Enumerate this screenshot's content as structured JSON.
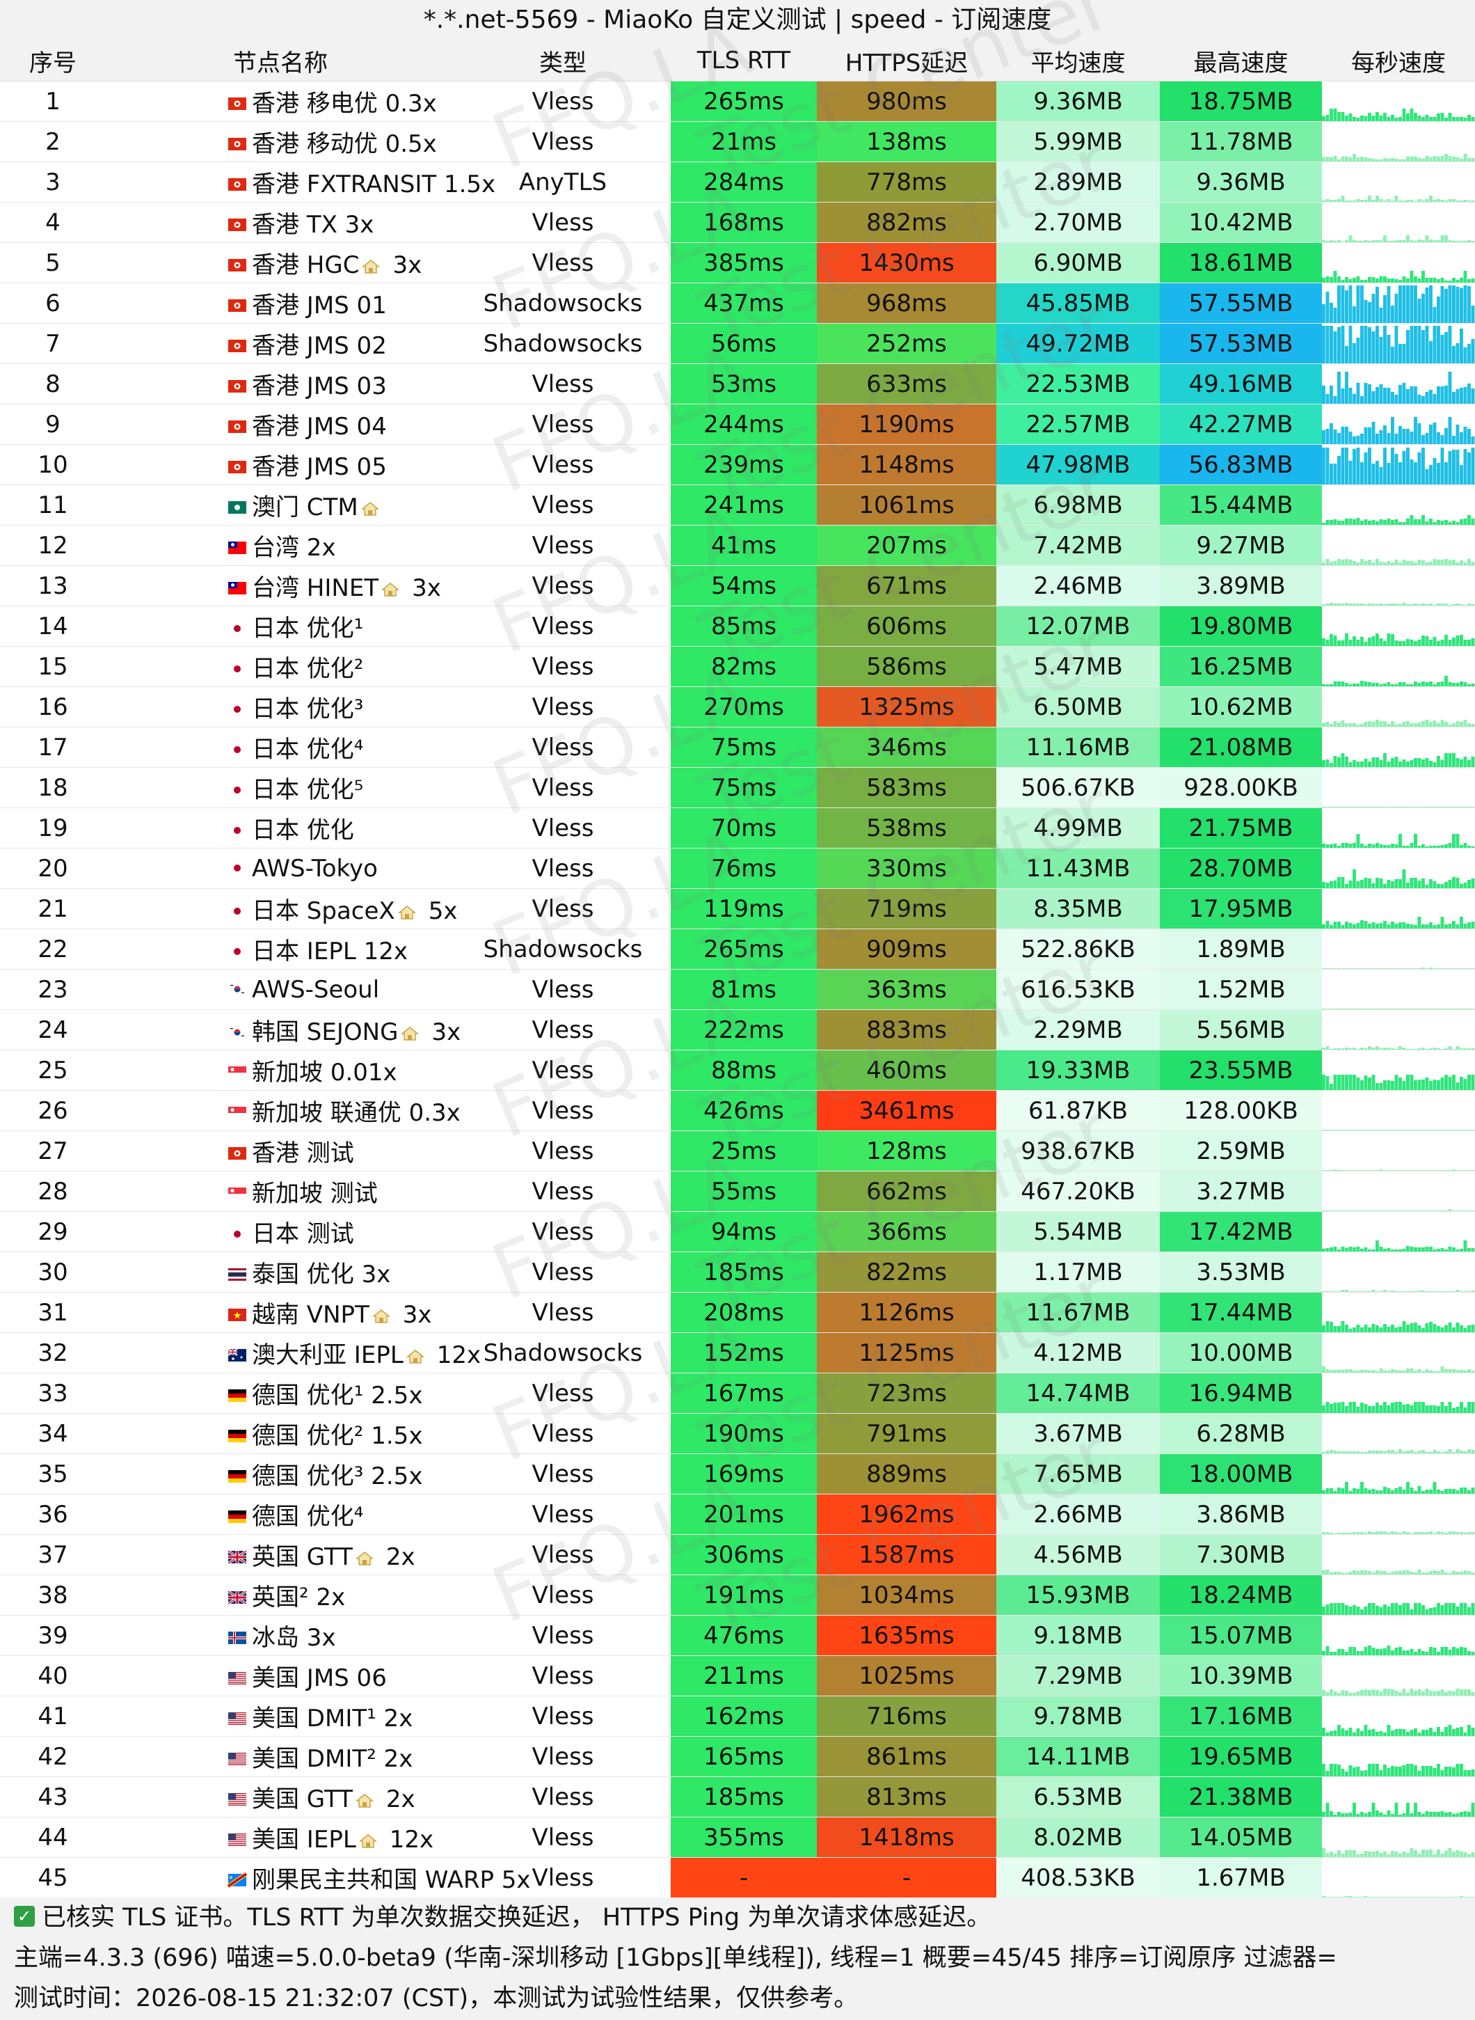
{
  "window": {
    "title": "*.*.net-5569 - MiaoKo 自定义测试 | speed - 订阅速度"
  },
  "columns": [
    "序号",
    "节点名称",
    "类型",
    "TLS RTT",
    "HTTPS延迟",
    "平均速度",
    "最高速度",
    "每秒速度"
  ],
  "watermark": {
    "text_left": "FFQ.LA",
    "text_right": "Test Center"
  },
  "rows": [
    {
      "no": "1",
      "flag": "hk",
      "name": "香港 移电优 0.3x",
      "type": "Vless",
      "tls": "265ms",
      "https": "980ms",
      "avg": "9.36MB",
      "max": "18.75MB",
      "tls_color": "#2ee866",
      "https_color": "#a98834",
      "avg_color": "#a0f5c4",
      "max_color": "#22e06a"
    },
    {
      "no": "2",
      "flag": "hk",
      "name": "香港 移动优 0.5x",
      "type": "Vless",
      "tls": "21ms",
      "https": "138ms",
      "avg": "5.99MB",
      "max": "11.78MB",
      "tls_color": "#2ee866",
      "https_color": "#3fe860",
      "avg_color": "#c2f7d8",
      "max_color": "#7aefa6"
    },
    {
      "no": "3",
      "flag": "hk",
      "name": "香港 FXTRANSIT 1.5x",
      "type": "AnyTLS",
      "tls": "284ms",
      "https": "778ms",
      "avg": "2.89MB",
      "max": "9.36MB",
      "tls_color": "#2ee866",
      "https_color": "#8f9b36",
      "avg_color": "#d6faea",
      "max_color": "#a0f5c4"
    },
    {
      "no": "4",
      "flag": "hk",
      "name": "香港 TX 3x",
      "type": "Vless",
      "tls": "168ms",
      "https": "882ms",
      "avg": "2.70MB",
      "max": "10.42MB",
      "tls_color": "#2ee866",
      "https_color": "#9e9035",
      "avg_color": "#d6faea",
      "max_color": "#92f3b8"
    },
    {
      "no": "5",
      "flag": "hk",
      "name": "香港 HGC",
      "home": true,
      "suffix": "3x",
      "type": "Vless",
      "tls": "385ms",
      "https": "1430ms",
      "avg": "6.90MB",
      "max": "18.61MB",
      "tls_color": "#2ee866",
      "https_color": "#f44a1c",
      "avg_color": "#b4f6ce",
      "max_color": "#22e06a"
    },
    {
      "no": "6",
      "flag": "hk",
      "name": "香港 JMS 01",
      "type": "Shadowsocks",
      "tls": "437ms",
      "https": "968ms",
      "avg": "45.85MB",
      "max": "57.55MB",
      "tls_color": "#2ee866",
      "https_color": "#a88934",
      "avg_color": "#22d7c8",
      "max_color": "#1ab6ee"
    },
    {
      "no": "7",
      "flag": "hk",
      "name": "香港 JMS 02",
      "type": "Shadowsocks",
      "tls": "56ms",
      "https": "252ms",
      "avg": "49.72MB",
      "max": "57.53MB",
      "tls_color": "#2ee866",
      "https_color": "#4be35c",
      "avg_color": "#1fcfd6",
      "max_color": "#1ab6ee"
    },
    {
      "no": "8",
      "flag": "hk",
      "name": "香港 JMS 03",
      "type": "Vless",
      "tls": "53ms",
      "https": "633ms",
      "avg": "22.53MB",
      "max": "49.16MB",
      "tls_color": "#2ee866",
      "https_color": "#7daa42",
      "avg_color": "#3fefa0",
      "max_color": "#1fd0d4"
    },
    {
      "no": "9",
      "flag": "hk",
      "name": "香港 JMS 04",
      "type": "Vless",
      "tls": "244ms",
      "https": "1190ms",
      "avg": "22.57MB",
      "max": "42.27MB",
      "tls_color": "#2ee866",
      "https_color": "#c8742c",
      "avg_color": "#3fefa0",
      "max_color": "#2be2bc"
    },
    {
      "no": "10",
      "flag": "hk",
      "name": "香港 JMS 05",
      "type": "Vless",
      "tls": "239ms",
      "https": "1148ms",
      "avg": "47.98MB",
      "max": "56.83MB",
      "tls_color": "#2ee866",
      "https_color": "#c0792e",
      "avg_color": "#20d2d0",
      "max_color": "#1ab6ee"
    },
    {
      "no": "11",
      "flag": "mo",
      "name": "澳门 CTM",
      "home": true,
      "suffix": "",
      "type": "Vless",
      "tls": "241ms",
      "https": "1061ms",
      "avg": "6.98MB",
      "max": "15.44MB",
      "tls_color": "#2ee866",
      "https_color": "#b57f31",
      "avg_color": "#b4f6ce",
      "max_color": "#45e884"
    },
    {
      "no": "12",
      "flag": "tw",
      "name": "台湾 2x",
      "type": "Vless",
      "tls": "41ms",
      "https": "207ms",
      "avg": "7.42MB",
      "max": "9.27MB",
      "tls_color": "#2ee866",
      "https_color": "#47e55d",
      "avg_color": "#b4f6ce",
      "max_color": "#a0f5c4"
    },
    {
      "no": "13",
      "flag": "tw",
      "name": "台湾 HINET",
      "home": true,
      "suffix": "3x",
      "type": "Vless",
      "tls": "54ms",
      "https": "671ms",
      "avg": "2.46MB",
      "max": "3.89MB",
      "tls_color": "#2ee866",
      "https_color": "#82a640",
      "avg_color": "#d9fbeb",
      "max_color": "#d0f9e4"
    },
    {
      "no": "14",
      "flag": "jp",
      "name": "日本 优化¹",
      "type": "Vless",
      "tls": "85ms",
      "https": "606ms",
      "avg": "12.07MB",
      "max": "19.80MB",
      "tls_color": "#2ee866",
      "https_color": "#7aad43",
      "avg_color": "#78eea4",
      "max_color": "#22e06a"
    },
    {
      "no": "15",
      "flag": "jp",
      "name": "日本 优化²",
      "type": "Vless",
      "tls": "82ms",
      "https": "586ms",
      "avg": "5.47MB",
      "max": "16.25MB",
      "tls_color": "#2ee866",
      "https_color": "#78af44",
      "avg_color": "#c2f7d8",
      "max_color": "#3de67e"
    },
    {
      "no": "16",
      "flag": "jp",
      "name": "日本 优化³",
      "type": "Vless",
      "tls": "270ms",
      "https": "1325ms",
      "avg": "6.50MB",
      "max": "10.62MB",
      "tls_color": "#2ee866",
      "https_color": "#e45a22",
      "avg_color": "#b8f6d0",
      "max_color": "#92f3b8"
    },
    {
      "no": "17",
      "flag": "jp",
      "name": "日本 优化⁴",
      "type": "Vless",
      "tls": "75ms",
      "https": "346ms",
      "avg": "11.16MB",
      "max": "21.08MB",
      "tls_color": "#2ee866",
      "https_color": "#56d655",
      "avg_color": "#82f0aa",
      "max_color": "#22e06a"
    },
    {
      "no": "18",
      "flag": "jp",
      "name": "日本 优化⁵",
      "type": "Vless",
      "tls": "75ms",
      "https": "583ms",
      "avg": "506.67KB",
      "max": "928.00KB",
      "tls_color": "#2ee866",
      "https_color": "#78af44",
      "avg_color": "#e6fdf1",
      "max_color": "#e2fcef"
    },
    {
      "no": "19",
      "flag": "jp",
      "name": "日本 优化",
      "type": "Vless",
      "tls": "70ms",
      "https": "538ms",
      "avg": "4.99MB",
      "max": "21.75MB",
      "tls_color": "#2ee866",
      "https_color": "#72b446",
      "avg_color": "#c6f8da",
      "max_color": "#22e06a"
    },
    {
      "no": "20",
      "flag": "jp",
      "name": "AWS-Tokyo",
      "type": "Vless",
      "tls": "76ms",
      "https": "330ms",
      "avg": "11.43MB",
      "max": "28.70MB",
      "tls_color": "#2ee866",
      "https_color": "#55d856",
      "avg_color": "#80f0a8",
      "max_color": "#22e06a"
    },
    {
      "no": "21",
      "flag": "jp",
      "name": "日本 SpaceX",
      "home": true,
      "suffix": "5x",
      "type": "Vless",
      "tls": "119ms",
      "https": "719ms",
      "avg": "8.35MB",
      "max": "17.95MB",
      "tls_color": "#2ee866",
      "https_color": "#88a03e",
      "avg_color": "#aaf4c8",
      "max_color": "#2ce272"
    },
    {
      "no": "22",
      "flag": "jp",
      "name": "日本 IEPL 12x",
      "type": "Shadowsocks",
      "tls": "265ms",
      "https": "909ms",
      "avg": "522.86KB",
      "max": "1.89MB",
      "tls_color": "#2ee866",
      "https_color": "#a18e35",
      "avg_color": "#e6fdf1",
      "max_color": "#dcfbec"
    },
    {
      "no": "23",
      "flag": "kr",
      "name": "AWS-Seoul",
      "type": "Vless",
      "tls": "81ms",
      "https": "363ms",
      "avg": "616.53KB",
      "max": "1.52MB",
      "tls_color": "#2ee866",
      "https_color": "#59d454",
      "avg_color": "#e6fdf1",
      "max_color": "#dcfbec"
    },
    {
      "no": "24",
      "flag": "kr",
      "name": "韩国 SEJONG",
      "home": true,
      "suffix": "3x",
      "type": "Vless",
      "tls": "222ms",
      "https": "883ms",
      "avg": "2.29MB",
      "max": "5.56MB",
      "tls_color": "#2ee866",
      "https_color": "#9e9035",
      "avg_color": "#d9fbeb",
      "max_color": "#c2f7d8"
    },
    {
      "no": "25",
      "flag": "sg",
      "name": "新加坡 0.01x",
      "type": "Vless",
      "tls": "88ms",
      "https": "460ms",
      "avg": "19.33MB",
      "max": "23.55MB",
      "tls_color": "#2ee866",
      "https_color": "#66c04b",
      "avg_color": "#4ae98a",
      "max_color": "#22e06a"
    },
    {
      "no": "26",
      "flag": "sg",
      "name": "新加坡 联通优 0.3x",
      "type": "Vless",
      "tls": "426ms",
      "https": "3461ms",
      "avg": "61.87KB",
      "max": "128.00KB",
      "tls_color": "#2ee866",
      "https_color": "#ff3d14",
      "avg_color": "#eafdf3",
      "max_color": "#e8fdf2"
    },
    {
      "no": "27",
      "flag": "hk",
      "name": "香港 测试",
      "type": "Vless",
      "tls": "25ms",
      "https": "128ms",
      "avg": "938.67KB",
      "max": "2.59MB",
      "tls_color": "#2ee866",
      "https_color": "#3de960",
      "avg_color": "#e2fcef",
      "max_color": "#d8fbea"
    },
    {
      "no": "28",
      "flag": "sg",
      "name": "新加坡 测试",
      "type": "Vless",
      "tls": "55ms",
      "https": "662ms",
      "avg": "467.20KB",
      "max": "3.27MB",
      "tls_color": "#2ee866",
      "https_color": "#80a841",
      "avg_color": "#e6fdf1",
      "max_color": "#d2f9e5"
    },
    {
      "no": "29",
      "flag": "jp",
      "name": "日本 测试",
      "type": "Vless",
      "tls": "94ms",
      "https": "366ms",
      "avg": "5.54MB",
      "max": "17.42MB",
      "tls_color": "#2ee866",
      "https_color": "#5ad354",
      "avg_color": "#c2f7d8",
      "max_color": "#32e476"
    },
    {
      "no": "30",
      "flag": "th",
      "name": "泰国 优化 3x",
      "type": "Vless",
      "tls": "185ms",
      "https": "822ms",
      "avg": "1.17MB",
      "max": "3.53MB",
      "tls_color": "#2ee866",
      "https_color": "#96963a",
      "avg_color": "#e0fcee",
      "max_color": "#d2f9e5"
    },
    {
      "no": "31",
      "flag": "vn",
      "name": "越南 VNPT",
      "home": true,
      "suffix": "3x",
      "type": "Vless",
      "tls": "208ms",
      "https": "1126ms",
      "avg": "11.67MB",
      "max": "17.44MB",
      "tls_color": "#2ee866",
      "https_color": "#bd7b2f",
      "avg_color": "#7ef0a8",
      "max_color": "#32e476"
    },
    {
      "no": "32",
      "flag": "au",
      "name": "澳大利亚 IEPL",
      "home": true,
      "suffix": "12x",
      "type": "Shadowsocks",
      "tls": "152ms",
      "https": "1125ms",
      "avg": "4.12MB",
      "max": "10.00MB",
      "tls_color": "#2ee866",
      "https_color": "#bd7b2f",
      "avg_color": "#ccf8e0",
      "max_color": "#96f3bb"
    },
    {
      "no": "33",
      "flag": "de",
      "name": "德国 优化¹ 2.5x",
      "type": "Vless",
      "tls": "167ms",
      "https": "723ms",
      "avg": "14.74MB",
      "max": "16.94MB",
      "tls_color": "#2ee866",
      "https_color": "#88a03e",
      "avg_color": "#64ec98",
      "max_color": "#38e67a"
    },
    {
      "no": "34",
      "flag": "de",
      "name": "德国 优化² 1.5x",
      "type": "Vless",
      "tls": "190ms",
      "https": "791ms",
      "avg": "3.67MB",
      "max": "6.28MB",
      "tls_color": "#2ee866",
      "https_color": "#909b39",
      "avg_color": "#d0f9e4",
      "max_color": "#bcf7d4"
    },
    {
      "no": "35",
      "flag": "de",
      "name": "德国 优化³ 2.5x",
      "type": "Vless",
      "tls": "169ms",
      "https": "889ms",
      "avg": "7.65MB",
      "max": "18.00MB",
      "tls_color": "#2ee866",
      "https_color": "#9e9035",
      "avg_color": "#b0f5cb",
      "max_color": "#2ce272"
    },
    {
      "no": "36",
      "flag": "de",
      "name": "德国 优化⁴",
      "type": "Vless",
      "tls": "201ms",
      "https": "1962ms",
      "avg": "2.66MB",
      "max": "3.86MB",
      "tls_color": "#2ee866",
      "https_color": "#ff4514",
      "avg_color": "#d6faea",
      "max_color": "#d0f9e4"
    },
    {
      "no": "37",
      "flag": "gb",
      "name": "英国 GTT",
      "home": true,
      "suffix": "2x",
      "type": "Vless",
      "tls": "306ms",
      "https": "1587ms",
      "avg": "4.56MB",
      "max": "7.30MB",
      "tls_color": "#2ee866",
      "https_color": "#ff4514",
      "avg_color": "#c8f8dc",
      "max_color": "#b2f5cc"
    },
    {
      "no": "38",
      "flag": "gb",
      "name": "英国² 2x",
      "type": "Vless",
      "tls": "191ms",
      "https": "1034ms",
      "avg": "15.93MB",
      "max": "18.24MB",
      "tls_color": "#2ee866",
      "https_color": "#b28132",
      "avg_color": "#5ceb92",
      "max_color": "#26e06c"
    },
    {
      "no": "39",
      "flag": "is",
      "name": "冰岛 3x",
      "type": "Vless",
      "tls": "476ms",
      "https": "1635ms",
      "avg": "9.18MB",
      "max": "15.07MB",
      "tls_color": "#2ee866",
      "https_color": "#ff4514",
      "avg_color": "#a2f5c5",
      "max_color": "#4ae886"
    },
    {
      "no": "40",
      "flag": "us",
      "name": "美国 JMS 06",
      "type": "Vless",
      "tls": "211ms",
      "https": "1025ms",
      "avg": "7.29MB",
      "max": "10.39MB",
      "tls_color": "#2ee866",
      "https_color": "#b28132",
      "avg_color": "#b2f5cc",
      "max_color": "#92f3b8"
    },
    {
      "no": "41",
      "flag": "us",
      "name": "美国 DMIT¹ 2x",
      "type": "Vless",
      "tls": "162ms",
      "https": "716ms",
      "avg": "9.78MB",
      "max": "17.16MB",
      "tls_color": "#2ee866",
      "https_color": "#86a23f",
      "avg_color": "#98f3bd",
      "max_color": "#36e578"
    },
    {
      "no": "42",
      "flag": "us",
      "name": "美国 DMIT² 2x",
      "type": "Vless",
      "tls": "165ms",
      "https": "861ms",
      "avg": "14.11MB",
      "max": "19.65MB",
      "tls_color": "#2ee866",
      "https_color": "#9a9337",
      "avg_color": "#6aed9c",
      "max_color": "#22e06a"
    },
    {
      "no": "43",
      "flag": "us",
      "name": "美国 GTT",
      "home": true,
      "suffix": "2x",
      "type": "Vless",
      "tls": "185ms",
      "https": "813ms",
      "avg": "6.53MB",
      "max": "21.38MB",
      "tls_color": "#2ee866",
      "https_color": "#94983a",
      "avg_color": "#b8f6d0",
      "max_color": "#22e06a"
    },
    {
      "no": "44",
      "flag": "us",
      "name": "美国 IEPL",
      "home": true,
      "suffix": "12x",
      "type": "Vless",
      "tls": "355ms",
      "https": "1418ms",
      "avg": "8.02MB",
      "max": "14.05MB",
      "tls_color": "#2ee866",
      "https_color": "#f24c1c",
      "avg_color": "#acf4c9",
      "max_color": "#56ea8e"
    },
    {
      "no": "45",
      "flag": "cd",
      "name": "刚果民主共和国 WARP 5x",
      "type": "Vless",
      "tls": "-",
      "https": "-",
      "avg": "408.53KB",
      "max": "1.67MB",
      "tls_color": "#ff4514",
      "https_color": "#ff4514",
      "avg_color": "#e6fdf1",
      "max_color": "#dcfbec"
    }
  ],
  "footer": {
    "check_line": "已核实 TLS 证书。TLS RTT 为单次数据交换延迟， HTTPS Ping 为单次请求体感延迟。",
    "info_line": "主端=4.3.3 (696) 喵速=5.0.0-beta9 (华南-深圳移动 [1Gbps][单线程]), 线程=1 概要=45/45 排序=订阅原序 过滤器=",
    "time_line": "测试时间：2026-08-15 21:32:07 (CST)，本测试为试验性结果，仅供参考。"
  }
}
